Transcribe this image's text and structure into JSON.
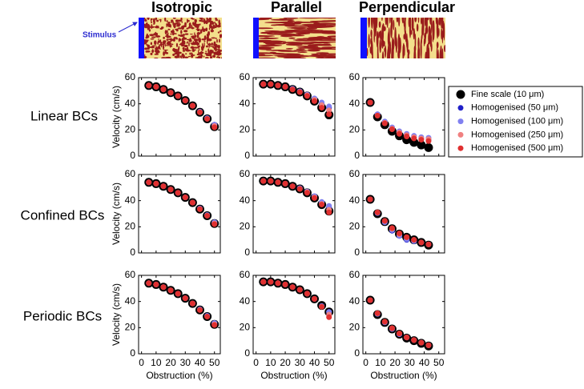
{
  "column_titles": [
    "Isotropic",
    "Parallel",
    "Perpendicular"
  ],
  "row_titles": [
    "Linear BCs",
    "Confined BCs",
    "Periodic BCs"
  ],
  "stimulus_label": "Stimulus",
  "chart_data": [
    {
      "type": "scatter",
      "ylabel": "Velocity (cm/s)",
      "xlim": [
        -2,
        54
      ],
      "xticks": [
        0,
        10,
        20,
        30,
        40,
        50
      ],
      "ylim": [
        0,
        60
      ],
      "yticks": [
        0,
        20,
        40,
        60
      ],
      "x": [
        5,
        10,
        15,
        20,
        25,
        30,
        35,
        40,
        45,
        50
      ],
      "series": [
        {
          "name": "Fine scale (10 μm)",
          "color": "#000000",
          "size": 5.5,
          "values": [
            54,
            53,
            51,
            48.5,
            46,
            42.5,
            38.5,
            33.5,
            28.5,
            22.5
          ]
        },
        {
          "name": "Homogenised (50 μm)",
          "color": "#2020c8",
          "size": 3.5,
          "values": [
            54,
            53,
            51,
            48.5,
            46,
            42.5,
            38.5,
            34,
            29,
            24
          ]
        },
        {
          "name": "Homogenised (100 μm)",
          "color": "#8080f0",
          "size": 3.5,
          "values": [
            54,
            53,
            51,
            48.5,
            46,
            42.5,
            38.5,
            34,
            29,
            24
          ]
        },
        {
          "name": "Homogenised (250 μm)",
          "color": "#f08080",
          "size": 3.5,
          "values": [
            54,
            53,
            51,
            48.5,
            46,
            42.5,
            38.5,
            33.5,
            28.5,
            23
          ]
        },
        {
          "name": "Homogenised (500 μm)",
          "color": "#e03030",
          "size": 3.5,
          "values": [
            54,
            53,
            51,
            48.5,
            46,
            42.5,
            38.5,
            33.5,
            28.5,
            22
          ]
        }
      ]
    },
    {
      "type": "scatter",
      "xlim": [
        -2,
        54
      ],
      "xticks": [
        0,
        10,
        20,
        30,
        40,
        50
      ],
      "ylim": [
        0,
        60
      ],
      "yticks": [
        0,
        20,
        40,
        60
      ],
      "x": [
        5,
        10,
        15,
        20,
        25,
        30,
        35,
        40,
        45,
        50
      ],
      "series": [
        {
          "name": "Fine scale (10 μm)",
          "color": "#000000",
          "size": 5.5,
          "values": [
            55,
            55,
            54,
            53,
            51,
            49,
            46,
            42,
            37,
            31.5
          ]
        },
        {
          "name": "Homogenised (50 μm)",
          "color": "#2020c8",
          "size": 3.5,
          "values": [
            55,
            55,
            54,
            53,
            51.5,
            49.5,
            47,
            44,
            40,
            37
          ]
        },
        {
          "name": "Homogenised (100 μm)",
          "color": "#8080f0",
          "size": 3.5,
          "values": [
            55,
            55,
            54,
            53,
            51.5,
            49.5,
            47,
            44,
            41,
            38
          ]
        },
        {
          "name": "Homogenised (250 μm)",
          "color": "#f08080",
          "size": 3.5,
          "values": [
            55,
            55,
            54,
            53,
            51,
            49,
            46.5,
            43,
            39,
            35
          ]
        },
        {
          "name": "Homogenised (500 μm)",
          "color": "#e03030",
          "size": 3.5,
          "values": [
            55,
            55,
            54,
            53,
            51,
            49,
            46,
            42,
            37,
            32
          ]
        }
      ]
    },
    {
      "type": "scatter",
      "xlim": [
        -2,
        54
      ],
      "xticks": [
        0,
        10,
        20,
        30,
        40,
        50
      ],
      "ylim": [
        0,
        60
      ],
      "yticks": [
        0,
        20,
        40,
        60
      ],
      "legend": "outside-right",
      "x": [
        3,
        8,
        13,
        18,
        23,
        28,
        33,
        38,
        43
      ],
      "series": [
        {
          "name": "Fine scale (10 μm)",
          "color": "#000000",
          "size": 5.5,
          "values": [
            41,
            30,
            24,
            19,
            15.5,
            12.5,
            10.5,
            8.5,
            6.5
          ]
        },
        {
          "name": "Homogenised (50 μm)",
          "color": "#2020c8",
          "size": 3.5,
          "values": [
            41,
            32,
            26,
            21,
            18,
            16,
            14.5,
            13.5,
            12.5
          ]
        },
        {
          "name": "Homogenised (100 μm)",
          "color": "#8080f0",
          "size": 3.5,
          "values": [
            41,
            32,
            26.5,
            22,
            19,
            17,
            15.5,
            14.5,
            14
          ]
        },
        {
          "name": "Homogenised (250 μm)",
          "color": "#f08080",
          "size": 3.5,
          "values": [
            41,
            31,
            25.5,
            21,
            18,
            16,
            14.5,
            13.5,
            13
          ]
        },
        {
          "name": "Homogenised (500 μm)",
          "color": "#e03030",
          "size": 3.5,
          "values": [
            41,
            31,
            25,
            20.5,
            17,
            15,
            13.5,
            12.5,
            11.5
          ]
        }
      ]
    },
    {
      "type": "scatter",
      "ylabel": "Velocity (cm/s)",
      "xlim": [
        -2,
        54
      ],
      "xticks": [
        0,
        10,
        20,
        30,
        40,
        50
      ],
      "ylim": [
        0,
        60
      ],
      "yticks": [
        0,
        20,
        40,
        60
      ],
      "x": [
        5,
        10,
        15,
        20,
        25,
        30,
        35,
        40,
        45,
        50
      ],
      "series": [
        {
          "name": "Fine scale (10 μm)",
          "color": "#000000",
          "size": 5.5,
          "values": [
            54,
            53,
            51,
            48.5,
            46,
            42.5,
            38.5,
            33.5,
            28.5,
            22.5
          ]
        },
        {
          "name": "Homogenised (50 μm)",
          "color": "#2020c8",
          "size": 3.5,
          "values": [
            54,
            53,
            51,
            48.5,
            46,
            42.5,
            38.5,
            34,
            28.5,
            23
          ]
        },
        {
          "name": "Homogenised (100 μm)",
          "color": "#8080f0",
          "size": 3.5,
          "values": [
            54,
            53,
            51,
            48.5,
            46,
            42.5,
            38.5,
            34,
            29,
            23.5
          ]
        },
        {
          "name": "Homogenised (250 μm)",
          "color": "#f08080",
          "size": 3.5,
          "values": [
            54,
            53,
            51,
            48.5,
            46,
            42.5,
            38.5,
            33.5,
            28.5,
            22.5
          ]
        },
        {
          "name": "Homogenised (500 μm)",
          "color": "#e03030",
          "size": 3.5,
          "values": [
            54,
            53,
            51,
            48.5,
            46,
            42.5,
            38.5,
            33.5,
            28.5,
            22
          ]
        }
      ]
    },
    {
      "type": "scatter",
      "xlim": [
        -2,
        54
      ],
      "xticks": [
        0,
        10,
        20,
        30,
        40,
        50
      ],
      "ylim": [
        0,
        60
      ],
      "yticks": [
        0,
        20,
        40,
        60
      ],
      "x": [
        5,
        10,
        15,
        20,
        25,
        30,
        35,
        40,
        45,
        50
      ],
      "series": [
        {
          "name": "Fine scale (10 μm)",
          "color": "#000000",
          "size": 5.5,
          "values": [
            55,
            55,
            54,
            53,
            51,
            49,
            46,
            42,
            37,
            32
          ]
        },
        {
          "name": "Homogenised (50 μm)",
          "color": "#2020c8",
          "size": 3.5,
          "values": [
            55,
            55,
            54,
            53,
            51,
            49.5,
            46.5,
            43,
            38,
            35
          ]
        },
        {
          "name": "Homogenised (100 μm)",
          "color": "#8080f0",
          "size": 3.5,
          "values": [
            55,
            55,
            54,
            53,
            51,
            49.5,
            47,
            43.5,
            39,
            36
          ]
        },
        {
          "name": "Homogenised (250 μm)",
          "color": "#f08080",
          "size": 3.5,
          "values": [
            55,
            55,
            54,
            53,
            51,
            49,
            46.5,
            42.5,
            37.5,
            33
          ]
        },
        {
          "name": "Homogenised (500 μm)",
          "color": "#e03030",
          "size": 3.5,
          "values": [
            55,
            55,
            54,
            53,
            51,
            49,
            46,
            42,
            37,
            31
          ]
        }
      ]
    },
    {
      "type": "scatter",
      "xlim": [
        -2,
        54
      ],
      "xticks": [
        0,
        10,
        20,
        30,
        40,
        50
      ],
      "ylim": [
        0,
        60
      ],
      "yticks": [
        0,
        20,
        40,
        60
      ],
      "x": [
        3,
        8,
        13,
        18,
        23,
        28,
        33,
        38,
        43
      ],
      "series": [
        {
          "name": "Fine scale (10 μm)",
          "color": "#000000",
          "size": 5.5,
          "values": [
            41,
            30,
            24,
            18.5,
            14.5,
            12,
            10,
            8,
            6
          ]
        },
        {
          "name": "Homogenised (50 μm)",
          "color": "#2020c8",
          "size": 3.5,
          "values": [
            41,
            30.5,
            23.5,
            17,
            13,
            10,
            9,
            8,
            6.5
          ]
        },
        {
          "name": "Homogenised (100 μm)",
          "color": "#8080f0",
          "size": 3.5,
          "values": [
            41,
            30.5,
            23.5,
            17.5,
            13,
            10.5,
            9,
            8,
            6.5
          ]
        },
        {
          "name": "Homogenised (250 μm)",
          "color": "#f08080",
          "size": 3.5,
          "values": [
            41,
            31,
            24.5,
            18.5,
            14.5,
            12,
            10,
            8,
            6.5
          ]
        },
        {
          "name": "Homogenised (500 μm)",
          "color": "#e03030",
          "size": 3.5,
          "values": [
            41,
            31,
            24.5,
            19,
            15,
            12,
            10,
            8,
            6.5
          ]
        }
      ]
    },
    {
      "type": "scatter",
      "ylabel": "Velocity (cm/s)",
      "xlabel": "Obstruction (%)",
      "xlim": [
        -2,
        54
      ],
      "xticks": [
        0,
        10,
        20,
        30,
        40,
        50
      ],
      "ylim": [
        0,
        60
      ],
      "yticks": [
        0,
        20,
        40,
        60
      ],
      "x": [
        5,
        10,
        15,
        20,
        25,
        30,
        35,
        40,
        45,
        50
      ],
      "series": [
        {
          "name": "Fine scale (10 μm)",
          "color": "#000000",
          "size": 5.5,
          "values": [
            54,
            53,
            51,
            48.5,
            46,
            42.5,
            38.5,
            33.5,
            28.5,
            22.5
          ]
        },
        {
          "name": "Homogenised (50 μm)",
          "color": "#2020c8",
          "size": 3.5,
          "values": [
            54,
            53,
            51,
            48.5,
            46,
            42.5,
            38.5,
            34,
            29,
            23.5
          ]
        },
        {
          "name": "Homogenised (100 μm)",
          "color": "#8080f0",
          "size": 3.5,
          "values": [
            54,
            53,
            51,
            48.5,
            46,
            42.5,
            38.5,
            34,
            29,
            23.5
          ]
        },
        {
          "name": "Homogenised (250 μm)",
          "color": "#f08080",
          "size": 3.5,
          "values": [
            54,
            53,
            51,
            48.5,
            46,
            42.5,
            38.5,
            33.5,
            28.5,
            22.5
          ]
        },
        {
          "name": "Homogenised (500 μm)",
          "color": "#e03030",
          "size": 3.5,
          "values": [
            54,
            53,
            51,
            48.5,
            46,
            42.5,
            38.5,
            33.5,
            28.5,
            22
          ]
        }
      ]
    },
    {
      "type": "scatter",
      "xlabel": "Obstruction (%)",
      "xlim": [
        -2,
        54
      ],
      "xticks": [
        0,
        10,
        20,
        30,
        40,
        50
      ],
      "ylim": [
        0,
        60
      ],
      "yticks": [
        0,
        20,
        40,
        60
      ],
      "x": [
        5,
        10,
        15,
        20,
        25,
        30,
        35,
        40,
        45,
        50
      ],
      "series": [
        {
          "name": "Fine scale (10 μm)",
          "color": "#000000",
          "size": 5.5,
          "values": [
            55,
            55,
            54,
            53,
            51,
            49,
            46,
            42,
            37,
            32
          ]
        },
        {
          "name": "Homogenised (50 μm)",
          "color": "#2020c8",
          "size": 3.5,
          "values": [
            55,
            55,
            54,
            53,
            51,
            49,
            46,
            42,
            36.5,
            32
          ]
        },
        {
          "name": "Homogenised (100 μm)",
          "color": "#8080f0",
          "size": 3.5,
          "values": [
            55,
            55,
            54,
            53,
            51,
            49,
            46,
            42,
            36.5,
            32
          ]
        },
        {
          "name": "Homogenised (250 μm)",
          "color": "#f08080",
          "size": 3.5,
          "values": [
            55,
            55,
            54,
            53,
            51,
            49,
            46,
            42,
            36,
            30
          ]
        },
        {
          "name": "Homogenised (500 μm)",
          "color": "#e03030",
          "size": 3.5,
          "values": [
            55,
            55,
            54,
            53,
            51,
            49,
            46,
            42,
            36,
            28
          ]
        }
      ]
    },
    {
      "type": "scatter",
      "xlabel": "Obstruction (%)",
      "xlim": [
        -2,
        54
      ],
      "xticks": [
        0,
        10,
        20,
        30,
        40,
        50
      ],
      "ylim": [
        0,
        60
      ],
      "yticks": [
        0,
        20,
        40,
        60
      ],
      "x": [
        3,
        8,
        13,
        18,
        23,
        28,
        33,
        38,
        43
      ],
      "series": [
        {
          "name": "Fine scale (10 μm)",
          "color": "#000000",
          "size": 5.5,
          "values": [
            41,
            30,
            24,
            19,
            15,
            12,
            10,
            8,
            6
          ]
        },
        {
          "name": "Homogenised (50 μm)",
          "color": "#2020c8",
          "size": 3.5,
          "values": [
            41,
            30.5,
            24,
            19,
            15,
            12.5,
            10.5,
            8.5,
            6.5
          ]
        },
        {
          "name": "Homogenised (100 μm)",
          "color": "#8080f0",
          "size": 3.5,
          "values": [
            41,
            30.5,
            24,
            19,
            15,
            12.5,
            10.5,
            8.5,
            6.5
          ]
        },
        {
          "name": "Homogenised (250 μm)",
          "color": "#f08080",
          "size": 3.5,
          "values": [
            41,
            31,
            24.5,
            19.5,
            15.5,
            12.5,
            10.5,
            8.5,
            6.5
          ]
        },
        {
          "name": "Homogenised (500 μm)",
          "color": "#e03030",
          "size": 3.5,
          "values": [
            41,
            31,
            24.5,
            19.5,
            15.5,
            12.5,
            10.5,
            8.5,
            6.5
          ]
        }
      ]
    }
  ]
}
